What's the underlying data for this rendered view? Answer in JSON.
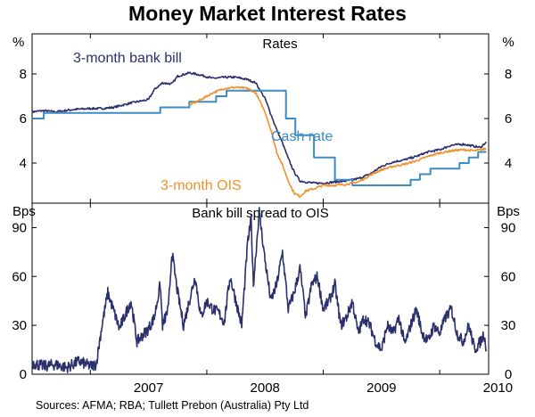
{
  "title": "Money Market Interest Rates",
  "source": "Sources: AFMA; RBA; Tullett Prebon (Australia) Pty Ltd",
  "colors": {
    "bank_bill": "#2b2f6b",
    "cash_rate": "#3b8bc4",
    "ois": "#f0902c"
  },
  "chart_data": [
    {
      "type": "line",
      "title": "Rates",
      "unit_left": "%",
      "unit_right": "%",
      "yticks": [
        4,
        6,
        8
      ],
      "ylim": [
        2.2,
        9.8
      ],
      "xlim": [
        2006.5,
        2010.42
      ],
      "xticks": [
        "2007",
        "2008",
        "2009",
        "2010"
      ],
      "series": [
        {
          "name": "3-month bank bill",
          "color": "#2b2f6b",
          "x": [
            2006.5,
            2006.6,
            2006.7,
            2006.85,
            2007.0,
            2007.1,
            2007.2,
            2007.35,
            2007.45,
            2007.5,
            2007.55,
            2007.62,
            2007.7,
            2007.75,
            2007.85,
            2007.95,
            2008.05,
            2008.15,
            2008.25,
            2008.35,
            2008.42,
            2008.5,
            2008.55,
            2008.6,
            2008.65,
            2008.7,
            2008.75,
            2008.8,
            2008.85,
            2008.92,
            2009.0,
            2009.1,
            2009.2,
            2009.3,
            2009.4,
            2009.5,
            2009.6,
            2009.7,
            2009.8,
            2009.9,
            2010.0,
            2010.1,
            2010.2,
            2010.3,
            2010.35,
            2010.4
          ],
          "y": [
            6.3,
            6.35,
            6.3,
            6.4,
            6.45,
            6.45,
            6.5,
            6.7,
            6.8,
            6.85,
            7.3,
            7.6,
            7.55,
            7.9,
            8.05,
            7.95,
            7.8,
            7.85,
            7.85,
            7.75,
            7.6,
            6.9,
            6.2,
            5.5,
            4.9,
            4.2,
            3.6,
            3.2,
            3.15,
            3.1,
            3.1,
            3.15,
            3.2,
            3.3,
            3.5,
            3.85,
            4.05,
            4.15,
            4.3,
            4.5,
            4.6,
            4.8,
            4.85,
            4.75,
            4.7,
            4.95
          ]
        },
        {
          "name": "Cash rate",
          "color": "#3b8bc4",
          "x": [
            2006.5,
            2006.6,
            2006.6,
            2006.85,
            2006.85,
            2007.6,
            2007.6,
            2007.85,
            2007.85,
            2008.08,
            2008.08,
            2008.17,
            2008.17,
            2008.68,
            2008.68,
            2008.76,
            2008.76,
            2008.92,
            2008.92,
            2009.1,
            2009.1,
            2009.25,
            2009.25,
            2009.75,
            2009.75,
            2009.83,
            2009.83,
            2009.92,
            2009.92,
            2010.17,
            2010.17,
            2010.25,
            2010.25,
            2010.33,
            2010.33,
            2010.4
          ],
          "y": [
            6.0,
            6.0,
            6.25,
            6.25,
            6.25,
            6.25,
            6.5,
            6.5,
            6.75,
            6.75,
            7.0,
            7.0,
            7.25,
            7.25,
            6.0,
            6.0,
            5.25,
            5.25,
            4.25,
            4.25,
            3.25,
            3.25,
            3.0,
            3.0,
            3.25,
            3.25,
            3.5,
            3.5,
            3.75,
            3.75,
            4.0,
            4.0,
            4.25,
            4.25,
            4.5,
            4.5
          ]
        },
        {
          "name": "3-month OIS",
          "color": "#f0902c",
          "x": [
            2007.85,
            2007.95,
            2008.05,
            2008.15,
            2008.25,
            2008.35,
            2008.42,
            2008.5,
            2008.55,
            2008.6,
            2008.65,
            2008.7,
            2008.75,
            2008.8,
            2008.85,
            2008.92,
            2009.0,
            2009.1,
            2009.2,
            2009.3,
            2009.4,
            2009.5,
            2009.6,
            2009.7,
            2009.8,
            2009.9,
            2010.0,
            2010.1,
            2010.2,
            2010.3,
            2010.4
          ],
          "y": [
            6.6,
            6.85,
            7.15,
            7.35,
            7.4,
            7.35,
            7.15,
            6.3,
            5.5,
            4.5,
            3.9,
            3.2,
            2.65,
            2.5,
            2.75,
            2.85,
            3.0,
            3.0,
            3.05,
            3.15,
            3.45,
            3.7,
            3.85,
            3.95,
            4.1,
            4.3,
            4.45,
            4.55,
            4.6,
            4.55,
            4.65
          ]
        }
      ],
      "labels": {
        "bank_bill": "3-month bank bill",
        "cash_rate": "Cash rate",
        "ois": "3-month OIS"
      }
    },
    {
      "type": "line",
      "title": "Bank bill spread to OIS",
      "unit_left": "Bps",
      "unit_right": "Bps",
      "yticks": [
        0,
        30,
        60,
        90
      ],
      "ylim": [
        0,
        105
      ],
      "xlim": [
        2006.5,
        2010.42
      ],
      "xticks": [
        "2007",
        "2008",
        "2009",
        "2010"
      ],
      "series": [
        {
          "name": "Bank bill spread to OIS",
          "color": "#2b2f6b",
          "x": [
            2006.5,
            2006.6,
            2006.7,
            2006.8,
            2006.9,
            2007.0,
            2007.05,
            2007.1,
            2007.15,
            2007.25,
            2007.35,
            2007.4,
            2007.5,
            2007.55,
            2007.6,
            2007.62,
            2007.67,
            2007.7,
            2007.75,
            2007.8,
            2007.85,
            2007.9,
            2007.95,
            2008.0,
            2008.05,
            2008.1,
            2008.15,
            2008.2,
            2008.25,
            2008.3,
            2008.35,
            2008.38,
            2008.4,
            2008.45,
            2008.5,
            2008.55,
            2008.6,
            2008.65,
            2008.7,
            2008.75,
            2008.8,
            2008.85,
            2008.9,
            2008.95,
            2009.0,
            2009.05,
            2009.1,
            2009.15,
            2009.2,
            2009.25,
            2009.3,
            2009.35,
            2009.4,
            2009.45,
            2009.5,
            2009.55,
            2009.6,
            2009.65,
            2009.7,
            2009.75,
            2009.8,
            2009.85,
            2009.9,
            2009.95,
            2010.0,
            2010.05,
            2010.1,
            2010.15,
            2010.2,
            2010.25,
            2010.3,
            2010.35,
            2010.38,
            2010.4
          ],
          "y": [
            7,
            5,
            6,
            4,
            8,
            5,
            6,
            30,
            50,
            28,
            45,
            20,
            28,
            35,
            55,
            30,
            40,
            75,
            50,
            30,
            45,
            60,
            35,
            45,
            40,
            38,
            32,
            60,
            45,
            30,
            80,
            95,
            55,
            100,
            70,
            45,
            55,
            75,
            40,
            50,
            65,
            35,
            55,
            60,
            40,
            45,
            55,
            30,
            35,
            45,
            25,
            35,
            30,
            20,
            15,
            30,
            25,
            35,
            18,
            30,
            40,
            25,
            20,
            30,
            25,
            35,
            40,
            25,
            20,
            30,
            15,
            20,
            25,
            15
          ]
        }
      ]
    }
  ]
}
